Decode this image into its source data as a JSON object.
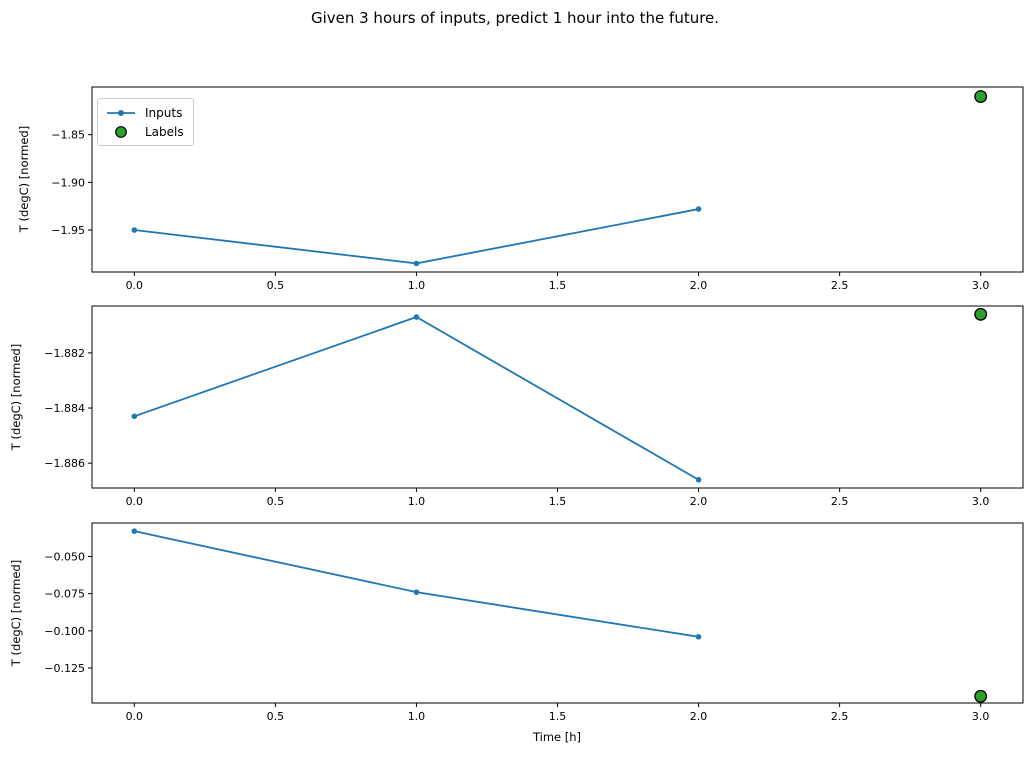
{
  "title": "Given 3 hours of inputs, predict 1 hour into the future.",
  "colors": {
    "inputs_line": "#1f77b4",
    "labels_marker": "#2ca02c",
    "marker_edge": "#000000",
    "axes": "#000000",
    "legend_border": "#cccccc"
  },
  "legend": {
    "items": [
      {
        "label": "Inputs",
        "marker": "blue-line-with-dot"
      },
      {
        "label": "Labels",
        "marker": "green-circle-black-edge"
      }
    ]
  },
  "chart_data": [
    {
      "type": "line",
      "ylabel": "T (degC) [normed]",
      "xlim": [
        -0.15,
        3.15
      ],
      "ylim": [
        -1.994,
        -1.8
      ],
      "xticks": [
        0,
        0.5,
        1,
        1.5,
        2,
        2.5,
        3
      ],
      "xtick_labels": [
        "0.0",
        "0.5",
        "1.0",
        "1.5",
        "2.0",
        "2.5",
        "3.0"
      ],
      "yticks": [
        -1.85,
        -1.9,
        -1.95
      ],
      "ytick_labels": [
        "−1.85",
        "−1.90",
        "−1.95"
      ],
      "grid": false,
      "legend_position": "upper-left",
      "series": [
        {
          "name": "Inputs",
          "type": "line",
          "x": [
            0,
            1,
            2
          ],
          "values": [
            -1.95,
            -1.985,
            -1.928
          ]
        },
        {
          "name": "Labels",
          "type": "scatter",
          "x": [
            3
          ],
          "values": [
            -1.81
          ]
        }
      ]
    },
    {
      "type": "line",
      "ylabel": "T (degC) [normed]",
      "xlim": [
        -0.15,
        3.15
      ],
      "ylim": [
        -1.8869,
        -1.8803
      ],
      "xticks": [
        0,
        0.5,
        1,
        1.5,
        2,
        2.5,
        3
      ],
      "xtick_labels": [
        "0.0",
        "0.5",
        "1.0",
        "1.5",
        "2.0",
        "2.5",
        "3.0"
      ],
      "yticks": [
        -1.882,
        -1.884,
        -1.886
      ],
      "ytick_labels": [
        "−1.882",
        "−1.884",
        "−1.886"
      ],
      "grid": false,
      "series": [
        {
          "name": "Inputs",
          "type": "line",
          "x": [
            0,
            1,
            2
          ],
          "values": [
            -1.8843,
            -1.8807,
            -1.8866
          ]
        },
        {
          "name": "Labels",
          "type": "scatter",
          "x": [
            3
          ],
          "values": [
            -1.8806
          ]
        }
      ]
    },
    {
      "type": "line",
      "ylabel": "T (degC) [normed]",
      "xlabel": "Time [h]",
      "xlim": [
        -0.15,
        3.15
      ],
      "ylim": [
        -0.1485,
        -0.0275
      ],
      "xticks": [
        0,
        0.5,
        1,
        1.5,
        2,
        2.5,
        3
      ],
      "xtick_labels": [
        "0.0",
        "0.5",
        "1.0",
        "1.5",
        "2.0",
        "2.5",
        "3.0"
      ],
      "yticks": [
        -0.05,
        -0.075,
        -0.1,
        -0.125
      ],
      "ytick_labels": [
        "−0.050",
        "−0.075",
        "−0.100",
        "−0.125"
      ],
      "grid": false,
      "series": [
        {
          "name": "Inputs",
          "type": "line",
          "x": [
            0,
            1,
            2
          ],
          "values": [
            -0.033,
            -0.074,
            -0.104
          ]
        },
        {
          "name": "Labels",
          "type": "scatter",
          "x": [
            3
          ],
          "values": [
            -0.144
          ]
        }
      ]
    }
  ]
}
